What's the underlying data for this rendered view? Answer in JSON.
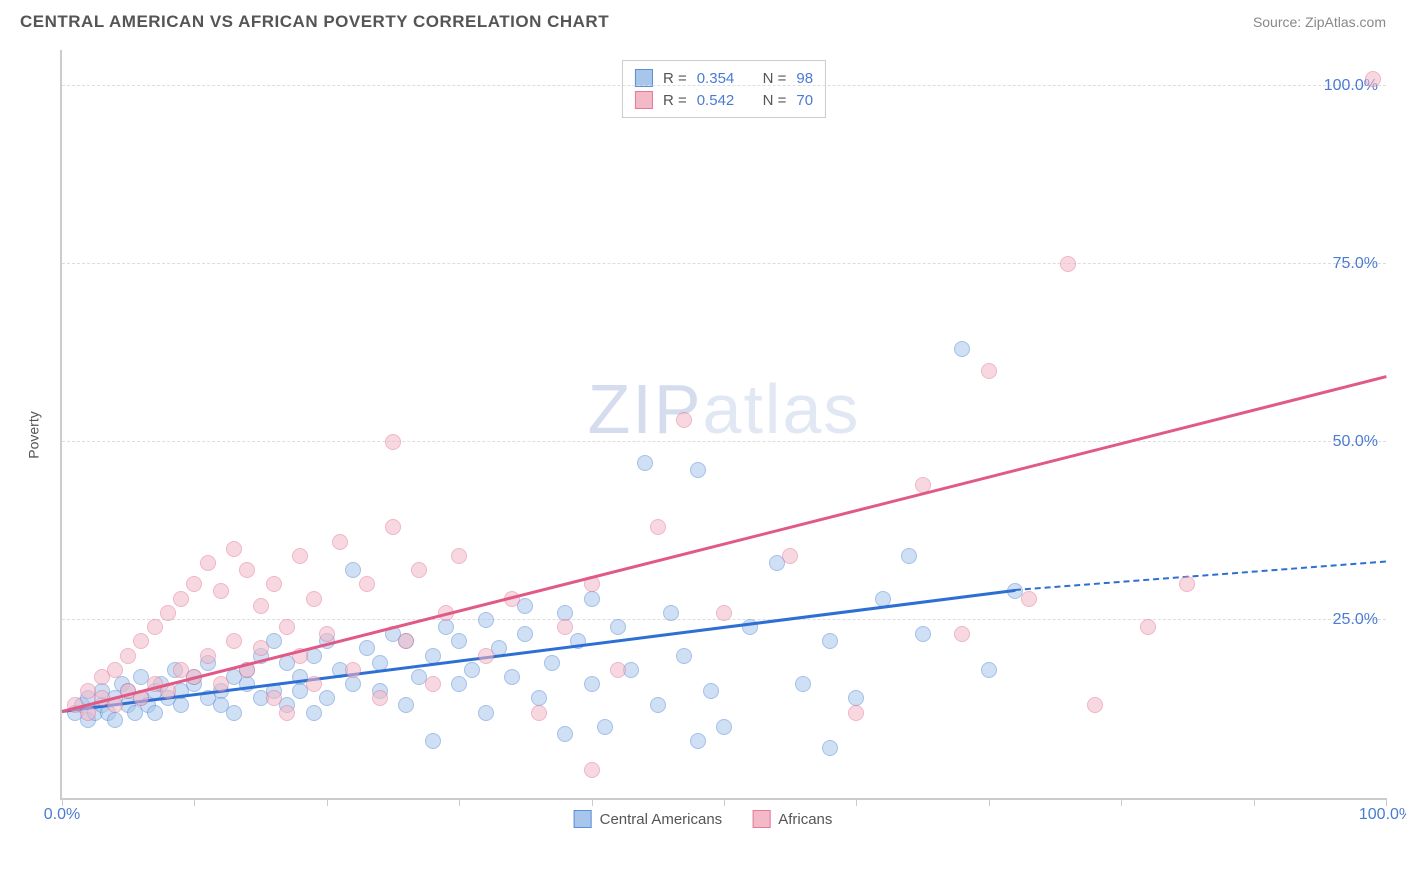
{
  "title": "CENTRAL AMERICAN VS AFRICAN POVERTY CORRELATION CHART",
  "source_label": "Source:",
  "source_name": "ZipAtlas.com",
  "ylabel": "Poverty",
  "watermark_a": "ZIP",
  "watermark_b": "atlas",
  "chart": {
    "type": "scatter",
    "xlim": [
      0,
      100
    ],
    "ylim": [
      0,
      105
    ],
    "xtick_positions": [
      0,
      10,
      20,
      30,
      40,
      50,
      60,
      70,
      80,
      90,
      100
    ],
    "xtick_labels": {
      "0": "0.0%",
      "100": "100.0%"
    },
    "ytick_positions": [
      25,
      50,
      75,
      100
    ],
    "ytick_labels": {
      "25": "25.0%",
      "50": "50.0%",
      "75": "75.0%",
      "100": "100.0%"
    },
    "grid_color": "#dddddd",
    "axis_color": "#cccccc",
    "background_color": "#ffffff",
    "tick_label_color": "#4a7bd4",
    "label_fontsize": 14,
    "tick_fontsize": 16,
    "marker_size": 16,
    "marker_opacity": 0.55,
    "series": [
      {
        "name": "Central Americans",
        "color_fill": "#a8c5ec",
        "color_stroke": "#5a8fd6",
        "r_value": "0.354",
        "n_value": "98",
        "trend": {
          "x1": 0,
          "y1": 12,
          "x2": 72,
          "y2": 29,
          "color": "#2e6fd4",
          "width": 2.5,
          "dash_extend_to_x": 100,
          "dash_y": 33
        },
        "points": [
          [
            1,
            12
          ],
          [
            1.5,
            13
          ],
          [
            2,
            11
          ],
          [
            2,
            14
          ],
          [
            2.5,
            12
          ],
          [
            3,
            13
          ],
          [
            3,
            15
          ],
          [
            3.5,
            12
          ],
          [
            4,
            14
          ],
          [
            4,
            11
          ],
          [
            4.5,
            16
          ],
          [
            5,
            13
          ],
          [
            5,
            15
          ],
          [
            5.5,
            12
          ],
          [
            6,
            14
          ],
          [
            6,
            17
          ],
          [
            6.5,
            13
          ],
          [
            7,
            15
          ],
          [
            7,
            12
          ],
          [
            7.5,
            16
          ],
          [
            8,
            14
          ],
          [
            8.5,
            18
          ],
          [
            9,
            13
          ],
          [
            9,
            15
          ],
          [
            10,
            16
          ],
          [
            10,
            17
          ],
          [
            11,
            14
          ],
          [
            11,
            19
          ],
          [
            12,
            15
          ],
          [
            12,
            13
          ],
          [
            13,
            17
          ],
          [
            13,
            12
          ],
          [
            14,
            16
          ],
          [
            14,
            18
          ],
          [
            15,
            14
          ],
          [
            15,
            20
          ],
          [
            16,
            15
          ],
          [
            16,
            22
          ],
          [
            17,
            13
          ],
          [
            17,
            19
          ],
          [
            18,
            17
          ],
          [
            18,
            15
          ],
          [
            19,
            20
          ],
          [
            19,
            12
          ],
          [
            20,
            22
          ],
          [
            20,
            14
          ],
          [
            21,
            18
          ],
          [
            22,
            16
          ],
          [
            22,
            32
          ],
          [
            23,
            21
          ],
          [
            24,
            15
          ],
          [
            24,
            19
          ],
          [
            25,
            23
          ],
          [
            26,
            13
          ],
          [
            26,
            22
          ],
          [
            27,
            17
          ],
          [
            28,
            20
          ],
          [
            28,
            8
          ],
          [
            29,
            24
          ],
          [
            30,
            16
          ],
          [
            30,
            22
          ],
          [
            31,
            18
          ],
          [
            32,
            25
          ],
          [
            32,
            12
          ],
          [
            33,
            21
          ],
          [
            34,
            17
          ],
          [
            35,
            23
          ],
          [
            35,
            27
          ],
          [
            36,
            14
          ],
          [
            37,
            19
          ],
          [
            38,
            26
          ],
          [
            38,
            9
          ],
          [
            39,
            22
          ],
          [
            40,
            16
          ],
          [
            40,
            28
          ],
          [
            41,
            10
          ],
          [
            42,
            24
          ],
          [
            43,
            18
          ],
          [
            44,
            47
          ],
          [
            45,
            13
          ],
          [
            46,
            26
          ],
          [
            47,
            20
          ],
          [
            48,
            46
          ],
          [
            48,
            8
          ],
          [
            49,
            15
          ],
          [
            50,
            10
          ],
          [
            52,
            24
          ],
          [
            54,
            33
          ],
          [
            56,
            16
          ],
          [
            58,
            22
          ],
          [
            60,
            14
          ],
          [
            62,
            28
          ],
          [
            64,
            34
          ],
          [
            65,
            23
          ],
          [
            68,
            63
          ],
          [
            70,
            18
          ],
          [
            72,
            29
          ],
          [
            58,
            7
          ]
        ]
      },
      {
        "name": "Africans",
        "color_fill": "#f4b9c7",
        "color_stroke": "#e47a99",
        "r_value": "0.542",
        "n_value": "70",
        "trend": {
          "x1": 0,
          "y1": 12,
          "x2": 100,
          "y2": 59,
          "color": "#e05a85",
          "width": 2.5
        },
        "points": [
          [
            1,
            13
          ],
          [
            2,
            12
          ],
          [
            2,
            15
          ],
          [
            3,
            14
          ],
          [
            3,
            17
          ],
          [
            4,
            13
          ],
          [
            4,
            18
          ],
          [
            5,
            15
          ],
          [
            5,
            20
          ],
          [
            6,
            14
          ],
          [
            6,
            22
          ],
          [
            7,
            16
          ],
          [
            7,
            24
          ],
          [
            8,
            15
          ],
          [
            8,
            26
          ],
          [
            9,
            18
          ],
          [
            9,
            28
          ],
          [
            10,
            17
          ],
          [
            10,
            30
          ],
          [
            11,
            20
          ],
          [
            11,
            33
          ],
          [
            12,
            16
          ],
          [
            12,
            29
          ],
          [
            13,
            22
          ],
          [
            13,
            35
          ],
          [
            14,
            18
          ],
          [
            14,
            32
          ],
          [
            15,
            21
          ],
          [
            15,
            27
          ],
          [
            16,
            14
          ],
          [
            16,
            30
          ],
          [
            17,
            24
          ],
          [
            17,
            12
          ],
          [
            18,
            20
          ],
          [
            18,
            34
          ],
          [
            19,
            16
          ],
          [
            19,
            28
          ],
          [
            20,
            23
          ],
          [
            21,
            36
          ],
          [
            22,
            18
          ],
          [
            23,
            30
          ],
          [
            24,
            14
          ],
          [
            25,
            38
          ],
          [
            25,
            50
          ],
          [
            26,
            22
          ],
          [
            27,
            32
          ],
          [
            28,
            16
          ],
          [
            29,
            26
          ],
          [
            30,
            34
          ],
          [
            32,
            20
          ],
          [
            34,
            28
          ],
          [
            36,
            12
          ],
          [
            38,
            24
          ],
          [
            40,
            30
          ],
          [
            42,
            18
          ],
          [
            45,
            38
          ],
          [
            47,
            53
          ],
          [
            50,
            26
          ],
          [
            55,
            34
          ],
          [
            60,
            12
          ],
          [
            65,
            44
          ],
          [
            68,
            23
          ],
          [
            70,
            60
          ],
          [
            73,
            28
          ],
          [
            76,
            75
          ],
          [
            78,
            13
          ],
          [
            82,
            24
          ],
          [
            85,
            30
          ],
          [
            99,
            101
          ],
          [
            40,
            4
          ]
        ]
      }
    ]
  },
  "stats_box": {
    "r_label": "R =",
    "n_label": "N ="
  },
  "legend": [
    {
      "label": "Central Americans",
      "fill": "#a8c5ec",
      "stroke": "#5a8fd6"
    },
    {
      "label": "Africans",
      "fill": "#f4b9c7",
      "stroke": "#e47a99"
    }
  ]
}
